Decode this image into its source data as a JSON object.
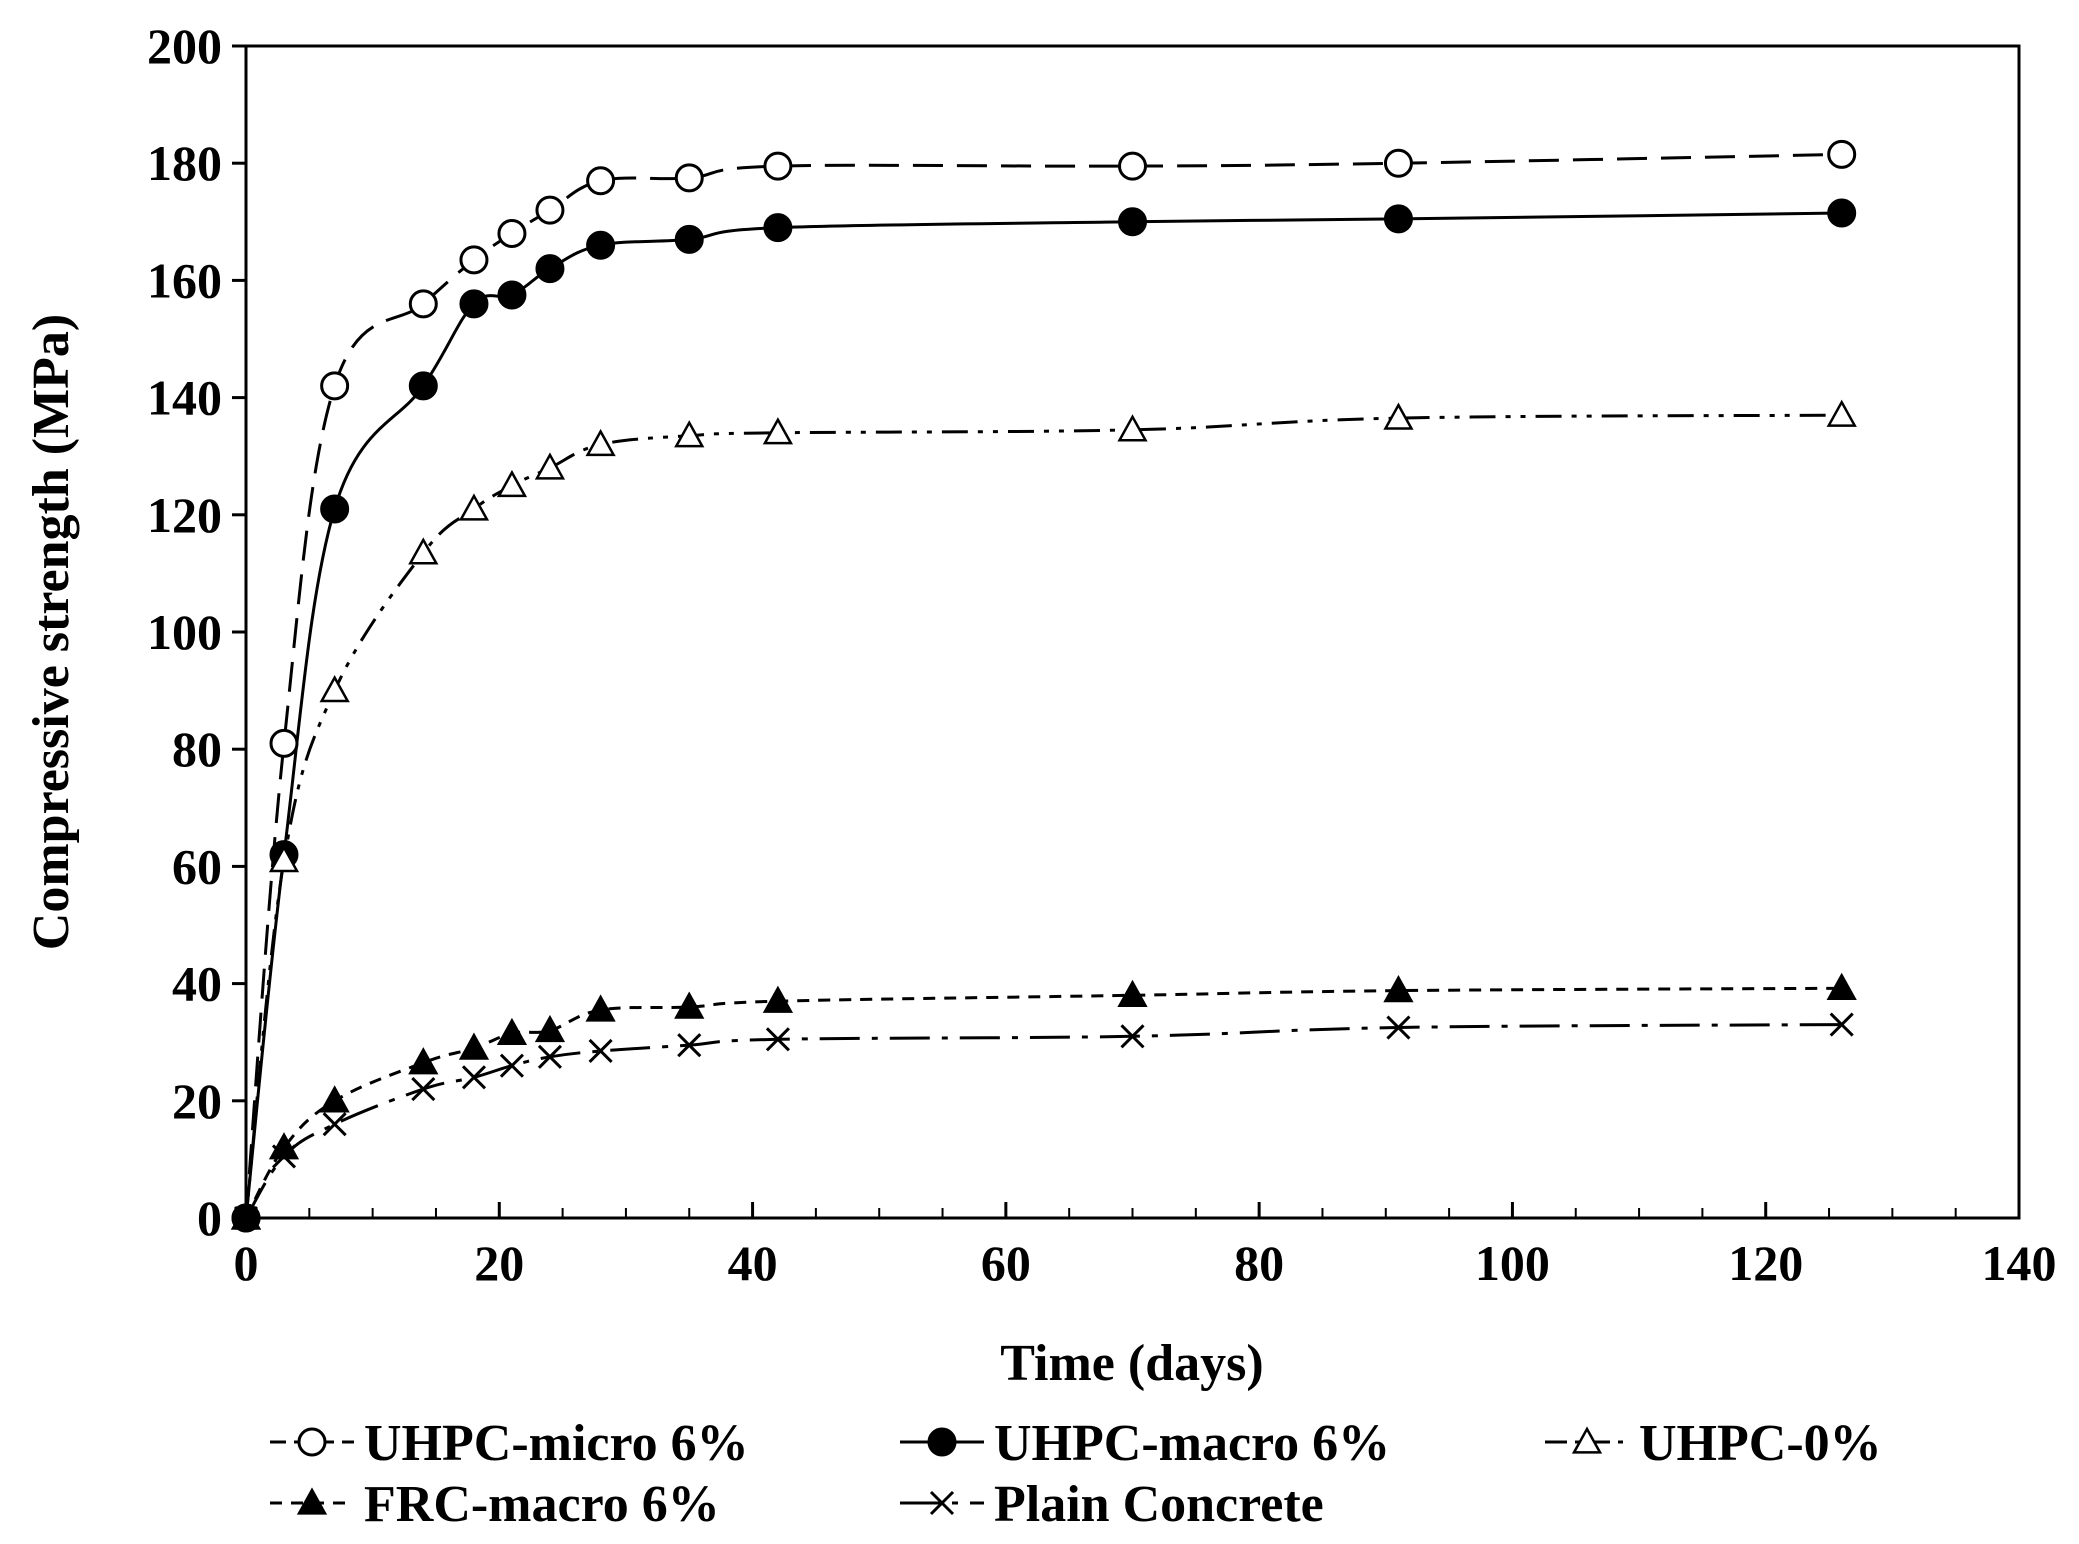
{
  "chart_data": {
    "type": "line",
    "title": "",
    "xlabel": "Time (days)",
    "ylabel": "Compressive strength (MPa)",
    "xlim": [
      0,
      140
    ],
    "ylim": [
      0,
      200
    ],
    "xticks": [
      0,
      20,
      40,
      60,
      80,
      100,
      120,
      140
    ],
    "yticks": [
      0,
      20,
      40,
      60,
      80,
      100,
      120,
      140,
      160,
      180,
      200
    ],
    "x_minor_step": 5,
    "grid": false,
    "legend_position": "bottom",
    "series": [
      {
        "name": "UHPC-micro 6%",
        "marker": "circle-open",
        "dash": "dashed",
        "x": [
          0,
          3,
          7,
          14,
          18,
          21,
          24,
          28,
          35,
          42,
          70,
          91,
          126
        ],
        "y": [
          0,
          81,
          142,
          156,
          163.5,
          168,
          172,
          177,
          177.5,
          179.5,
          179.5,
          180,
          181.5
        ]
      },
      {
        "name": "UHPC-macro 6%",
        "marker": "circle-filled",
        "dash": "solid",
        "x": [
          0,
          3,
          7,
          14,
          18,
          21,
          24,
          28,
          35,
          42,
          70,
          91,
          126
        ],
        "y": [
          0,
          62,
          121,
          142,
          156,
          157.5,
          162,
          166,
          167,
          169,
          170,
          170.5,
          171.5
        ]
      },
      {
        "name": "UHPC-0%",
        "marker": "triangle-open",
        "dash": "dash-dot-dot",
        "x": [
          0,
          3,
          7,
          14,
          18,
          21,
          24,
          28,
          35,
          42,
          70,
          91,
          126
        ],
        "y": [
          0,
          61,
          90,
          113.5,
          121,
          125,
          128,
          132,
          133.5,
          134,
          134.5,
          136.5,
          137
        ]
      },
      {
        "name": "FRC-macro 6%",
        "marker": "triangle-filled",
        "dash": "short-dash",
        "x": [
          0,
          3,
          7,
          14,
          18,
          21,
          24,
          28,
          35,
          42,
          70,
          91,
          126
        ],
        "y": [
          0,
          12,
          20,
          26.5,
          29,
          31.5,
          32,
          35.5,
          36,
          37,
          38,
          38.8,
          39.2
        ]
      },
      {
        "name": "Plain Concrete",
        "marker": "x",
        "dash": "long-dash-dot",
        "x": [
          0,
          3,
          7,
          14,
          18,
          21,
          24,
          28,
          35,
          42,
          70,
          91,
          126
        ],
        "y": [
          0,
          10.5,
          16,
          22,
          24,
          26,
          27.5,
          28.5,
          29.5,
          30.5,
          31,
          32.5,
          33
        ]
      }
    ]
  }
}
